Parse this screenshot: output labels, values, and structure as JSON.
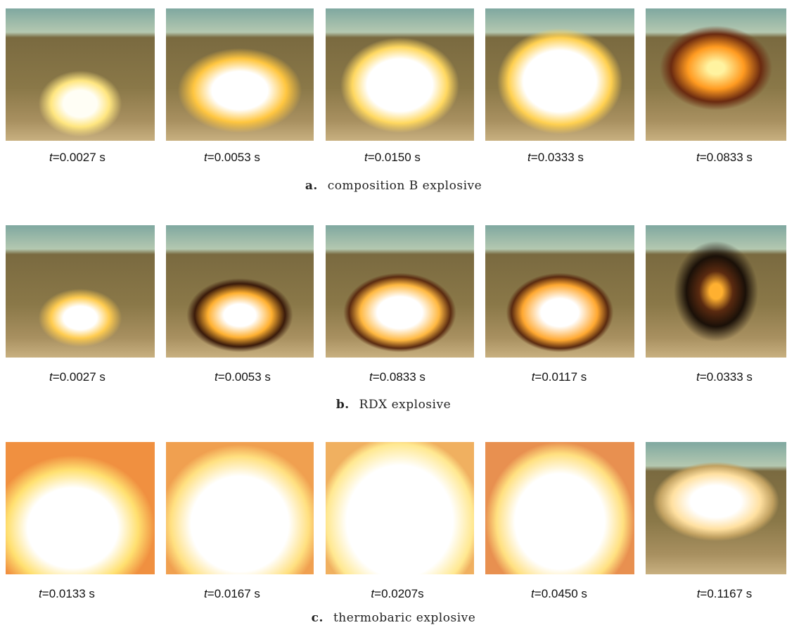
{
  "time_symbol": "t",
  "panels": [
    {
      "label": "a.",
      "caption": "composition B explosive",
      "frames": [
        "=0.0027 s",
        "=0.0053 s",
        "=0.0150 s",
        "=0.0333 s",
        "=0.0833 s"
      ]
    },
    {
      "label": "b.",
      "caption": "RDX explosive",
      "frames": [
        "=0.0027 s",
        "=0.0053 s",
        "=0.0833 s",
        "=0.0117 s",
        "=0.0333 s"
      ]
    },
    {
      "label": "c.",
      "caption": "thermobaric explosive",
      "frames": [
        "=0.0133 s",
        "=0.0167 s",
        "=0.0207s",
        "=0.0450 s",
        "=0.1167 s"
      ]
    }
  ]
}
